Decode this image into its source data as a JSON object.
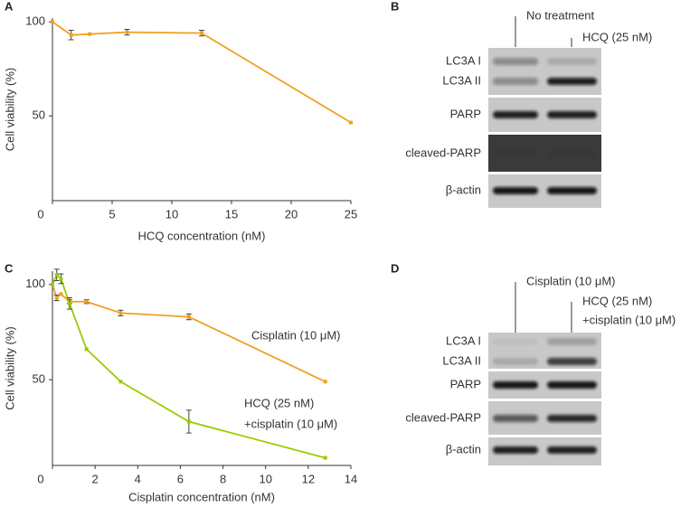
{
  "chart_data": [
    {
      "type": "line",
      "panel": "A",
      "x_label": "HCQ concentration (nM)",
      "y_label": "Cell viability (%)",
      "x": [
        0,
        1.5625,
        3.125,
        6.25,
        12.5,
        25
      ],
      "series": [
        {
          "name": [],
          "color": "#f0a020",
          "values": [
            100,
            93,
            93.5,
            94.5,
            94,
            46.5
          ],
          "errors": [
            null,
            2.5,
            null,
            1.5,
            1.5,
            null
          ]
        }
      ],
      "xlim": [
        0,
        25
      ],
      "xticks": [
        0,
        5,
        10,
        15,
        20,
        25
      ],
      "ylim": [
        5,
        102
      ],
      "yticks": [
        50,
        100
      ],
      "grid": false
    },
    {
      "type": "line",
      "panel": "C",
      "x_label": "Cisplatin concentration (nM)",
      "y_label": "Cell viability (%)",
      "x": [
        0,
        0.2,
        0.4,
        0.8,
        1.6,
        3.2,
        6.4,
        12.8
      ],
      "series": [
        {
          "name": [
            "Cisplatin (10 μM)"
          ],
          "color": "#f0a020",
          "values": [
            100,
            93,
            95,
            91,
            91,
            85,
            83,
            49
          ],
          "errors": [
            null,
            1.5,
            null,
            1,
            1,
            1.5,
            1.5,
            null
          ]
        },
        {
          "name": [
            "HCQ (25 nM)",
            "+cisplatin (10 μM)"
          ],
          "color": "#99cc00",
          "values": [
            100,
            105,
            103,
            90,
            66,
            49,
            28,
            9
          ],
          "errors": [
            null,
            3,
            2.5,
            3,
            null,
            null,
            6,
            null
          ]
        }
      ],
      "xlim": [
        0,
        14
      ],
      "xticks": [
        0,
        2,
        4,
        6,
        8,
        10,
        12,
        14
      ],
      "ylim": [
        5,
        107
      ],
      "yticks": [
        50,
        100
      ],
      "grid": false
    }
  ],
  "blots": [
    {
      "panel": "B",
      "columns": [
        [
          "No treatment"
        ],
        [
          "HCQ (25 nM)"
        ]
      ],
      "boxes": [
        {
          "rows": [
            "LC3A I",
            "LC3A II"
          ]
        },
        {
          "rows": [
            "PARP"
          ]
        },
        {
          "rows": [
            "cleaved-PARP"
          ]
        },
        {
          "rows": [
            "β-actin"
          ]
        }
      ]
    },
    {
      "panel": "D",
      "columns": [
        [
          "Cisplatin (10 μM)"
        ],
        [
          "HCQ (25 nM)",
          "+cisplatin (10 μM)"
        ]
      ],
      "boxes": [
        {
          "rows": [
            "LC3A I",
            "LC3A II"
          ]
        },
        {
          "rows": [
            "PARP"
          ]
        },
        {
          "rows": [
            "cleaved-PARP"
          ]
        },
        {
          "rows": [
            "β-actin"
          ]
        }
      ]
    }
  ]
}
